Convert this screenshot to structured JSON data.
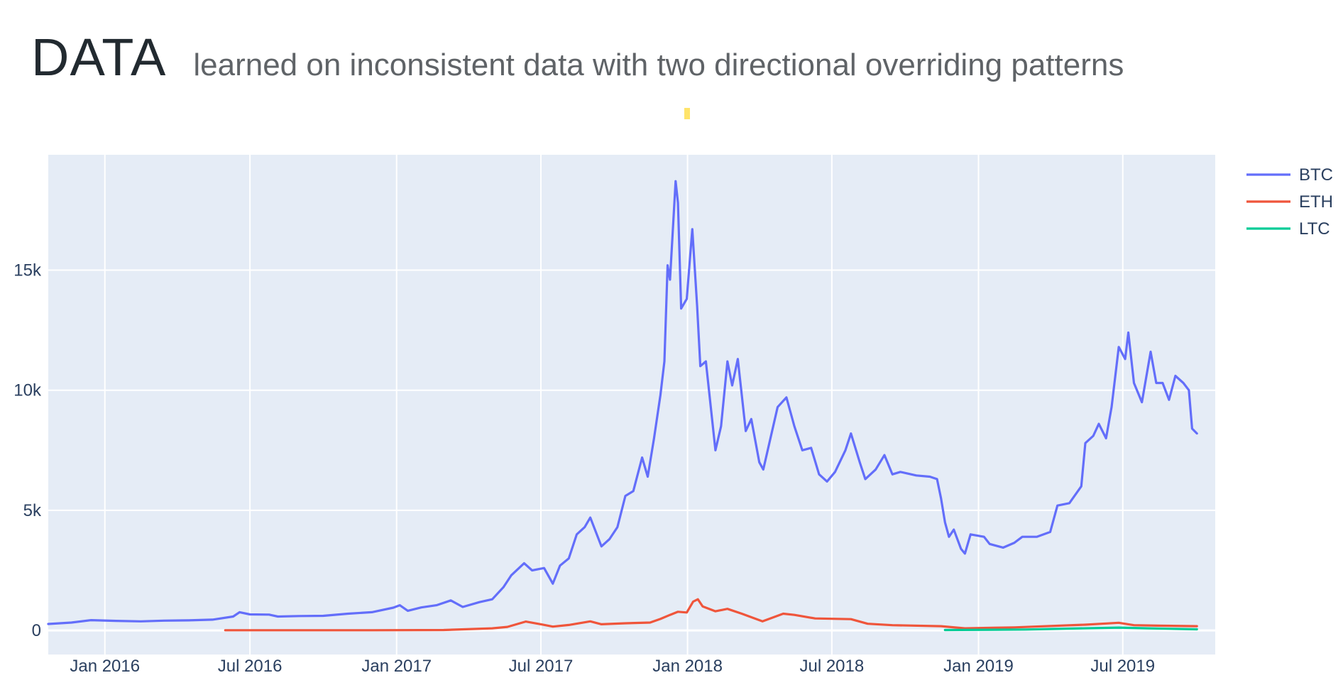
{
  "header": {
    "title": "DATA",
    "subtitle": "learned on inconsistent data with two directional overriding patterns"
  },
  "chart_data": {
    "type": "line",
    "title": "",
    "xlabel": "",
    "ylabel": "",
    "xlim": [
      "2015-10-22",
      "2019-10-25"
    ],
    "ylim": [
      -1000,
      19800
    ],
    "x_ticks": [
      {
        "date": "2016-01-01",
        "label": "Jan 2016"
      },
      {
        "date": "2016-07-01",
        "label": "Jul 2016"
      },
      {
        "date": "2017-01-01",
        "label": "Jan 2017"
      },
      {
        "date": "2017-07-01",
        "label": "Jul 2017"
      },
      {
        "date": "2018-01-01",
        "label": "Jan 2018"
      },
      {
        "date": "2018-07-01",
        "label": "Jul 2018"
      },
      {
        "date": "2019-01-01",
        "label": "Jan 2019"
      },
      {
        "date": "2019-07-01",
        "label": "Jul 2019"
      }
    ],
    "y_ticks": [
      {
        "value": 0,
        "label": "0"
      },
      {
        "value": 5000,
        "label": "5k"
      },
      {
        "value": 10000,
        "label": "10k"
      },
      {
        "value": 15000,
        "label": "15k"
      }
    ],
    "grid": true,
    "legend_position": "top-right",
    "plot_bgcolor": "#e5ecf6",
    "series": [
      {
        "name": "BTC",
        "color": "#636efa",
        "points": [
          [
            "2015-10-22",
            270
          ],
          [
            "2015-11-20",
            330
          ],
          [
            "2015-12-15",
            430
          ],
          [
            "2016-01-15",
            400
          ],
          [
            "2016-02-15",
            380
          ],
          [
            "2016-03-15",
            410
          ],
          [
            "2016-04-15",
            420
          ],
          [
            "2016-05-15",
            450
          ],
          [
            "2016-06-10",
            580
          ],
          [
            "2016-06-18",
            760
          ],
          [
            "2016-07-01",
            670
          ],
          [
            "2016-07-25",
            660
          ],
          [
            "2016-08-05",
            580
          ],
          [
            "2016-09-01",
            600
          ],
          [
            "2016-10-01",
            610
          ],
          [
            "2016-11-01",
            700
          ],
          [
            "2016-12-01",
            760
          ],
          [
            "2016-12-28",
            950
          ],
          [
            "2017-01-05",
            1050
          ],
          [
            "2017-01-15",
            820
          ],
          [
            "2017-02-01",
            960
          ],
          [
            "2017-02-20",
            1050
          ],
          [
            "2017-03-10",
            1250
          ],
          [
            "2017-03-25",
            980
          ],
          [
            "2017-04-15",
            1180
          ],
          [
            "2017-05-01",
            1300
          ],
          [
            "2017-05-15",
            1800
          ],
          [
            "2017-05-25",
            2300
          ],
          [
            "2017-06-10",
            2800
          ],
          [
            "2017-06-20",
            2500
          ],
          [
            "2017-07-05",
            2600
          ],
          [
            "2017-07-16",
            1950
          ],
          [
            "2017-07-25",
            2700
          ],
          [
            "2017-08-05",
            3000
          ],
          [
            "2017-08-15",
            4000
          ],
          [
            "2017-08-25",
            4300
          ],
          [
            "2017-09-01",
            4700
          ],
          [
            "2017-09-15",
            3500
          ],
          [
            "2017-09-25",
            3800
          ],
          [
            "2017-10-05",
            4300
          ],
          [
            "2017-10-15",
            5600
          ],
          [
            "2017-10-25",
            5800
          ],
          [
            "2017-11-05",
            7200
          ],
          [
            "2017-11-12",
            6400
          ],
          [
            "2017-11-20",
            8000
          ],
          [
            "2017-11-28",
            9800
          ],
          [
            "2017-12-03",
            11200
          ],
          [
            "2017-12-07",
            15200
          ],
          [
            "2017-12-10",
            14600
          ],
          [
            "2017-12-17",
            18700
          ],
          [
            "2017-12-20",
            17800
          ],
          [
            "2017-12-24",
            13400
          ],
          [
            "2017-12-31",
            13800
          ],
          [
            "2018-01-07",
            16700
          ],
          [
            "2018-01-13",
            13500
          ],
          [
            "2018-01-17",
            11000
          ],
          [
            "2018-01-24",
            11200
          ],
          [
            "2018-02-05",
            7500
          ],
          [
            "2018-02-12",
            8500
          ],
          [
            "2018-02-20",
            11200
          ],
          [
            "2018-02-26",
            10200
          ],
          [
            "2018-03-05",
            11300
          ],
          [
            "2018-03-15",
            8300
          ],
          [
            "2018-03-22",
            8800
          ],
          [
            "2018-04-01",
            7000
          ],
          [
            "2018-04-06",
            6700
          ],
          [
            "2018-04-15",
            8000
          ],
          [
            "2018-04-24",
            9300
          ],
          [
            "2018-05-05",
            9700
          ],
          [
            "2018-05-15",
            8500
          ],
          [
            "2018-05-25",
            7500
          ],
          [
            "2018-06-05",
            7600
          ],
          [
            "2018-06-15",
            6500
          ],
          [
            "2018-06-25",
            6200
          ],
          [
            "2018-07-05",
            6600
          ],
          [
            "2018-07-18",
            7500
          ],
          [
            "2018-07-25",
            8200
          ],
          [
            "2018-08-05",
            7000
          ],
          [
            "2018-08-12",
            6300
          ],
          [
            "2018-08-25",
            6700
          ],
          [
            "2018-09-05",
            7300
          ],
          [
            "2018-09-15",
            6500
          ],
          [
            "2018-09-25",
            6600
          ],
          [
            "2018-10-15",
            6450
          ],
          [
            "2018-11-01",
            6400
          ],
          [
            "2018-11-10",
            6300
          ],
          [
            "2018-11-15",
            5500
          ],
          [
            "2018-11-20",
            4500
          ],
          [
            "2018-11-25",
            3900
          ],
          [
            "2018-12-01",
            4200
          ],
          [
            "2018-12-10",
            3400
          ],
          [
            "2018-12-15",
            3200
          ],
          [
            "2018-12-22",
            4000
          ],
          [
            "2019-01-08",
            3900
          ],
          [
            "2019-01-15",
            3600
          ],
          [
            "2019-02-01",
            3450
          ],
          [
            "2019-02-15",
            3650
          ],
          [
            "2019-02-25",
            3900
          ],
          [
            "2019-03-15",
            3900
          ],
          [
            "2019-04-01",
            4100
          ],
          [
            "2019-04-10",
            5200
          ],
          [
            "2019-04-25",
            5300
          ],
          [
            "2019-05-10",
            6000
          ],
          [
            "2019-05-15",
            7800
          ],
          [
            "2019-05-25",
            8100
          ],
          [
            "2019-06-01",
            8600
          ],
          [
            "2019-06-10",
            8000
          ],
          [
            "2019-06-17",
            9300
          ],
          [
            "2019-06-26",
            11800
          ],
          [
            "2019-07-04",
            11300
          ],
          [
            "2019-07-08",
            12400
          ],
          [
            "2019-07-15",
            10300
          ],
          [
            "2019-07-25",
            9500
          ],
          [
            "2019-08-05",
            11600
          ],
          [
            "2019-08-12",
            10300
          ],
          [
            "2019-08-20",
            10300
          ],
          [
            "2019-08-28",
            9600
          ],
          [
            "2019-09-05",
            10600
          ],
          [
            "2019-09-15",
            10300
          ],
          [
            "2019-09-22",
            10000
          ],
          [
            "2019-09-26",
            8400
          ],
          [
            "2019-10-02",
            8200
          ]
        ]
      },
      {
        "name": "ETH",
        "color": "#ef553b",
        "points": [
          [
            "2016-05-31",
            10
          ],
          [
            "2016-09-01",
            11
          ],
          [
            "2016-12-01",
            9
          ],
          [
            "2017-03-01",
            20
          ],
          [
            "2017-05-01",
            90
          ],
          [
            "2017-05-20",
            150
          ],
          [
            "2017-06-12",
            370
          ],
          [
            "2017-07-01",
            260
          ],
          [
            "2017-07-16",
            160
          ],
          [
            "2017-08-05",
            230
          ],
          [
            "2017-09-01",
            380
          ],
          [
            "2017-09-15",
            260
          ],
          [
            "2017-10-15",
            300
          ],
          [
            "2017-11-15",
            330
          ],
          [
            "2017-11-28",
            480
          ],
          [
            "2017-12-10",
            650
          ],
          [
            "2017-12-20",
            780
          ],
          [
            "2017-12-31",
            750
          ],
          [
            "2018-01-08",
            1200
          ],
          [
            "2018-01-14",
            1300
          ],
          [
            "2018-01-20",
            1000
          ],
          [
            "2018-02-05",
            800
          ],
          [
            "2018-02-20",
            900
          ],
          [
            "2018-03-10",
            700
          ],
          [
            "2018-04-05",
            380
          ],
          [
            "2018-05-01",
            700
          ],
          [
            "2018-05-15",
            650
          ],
          [
            "2018-06-10",
            500
          ],
          [
            "2018-07-25",
            470
          ],
          [
            "2018-08-15",
            280
          ],
          [
            "2018-09-15",
            220
          ],
          [
            "2018-11-15",
            180
          ],
          [
            "2018-12-15",
            90
          ],
          [
            "2019-02-15",
            130
          ],
          [
            "2019-05-15",
            240
          ],
          [
            "2019-06-26",
            320
          ],
          [
            "2019-07-15",
            220
          ],
          [
            "2019-08-15",
            200
          ],
          [
            "2019-10-02",
            180
          ]
        ]
      },
      {
        "name": "LTC",
        "color": "#00cc96",
        "points": [
          [
            "2018-11-20",
            20
          ],
          [
            "2019-03-01",
            40
          ],
          [
            "2019-06-26",
            120
          ],
          [
            "2019-08-01",
            90
          ],
          [
            "2019-10-02",
            50
          ]
        ]
      }
    ]
  }
}
